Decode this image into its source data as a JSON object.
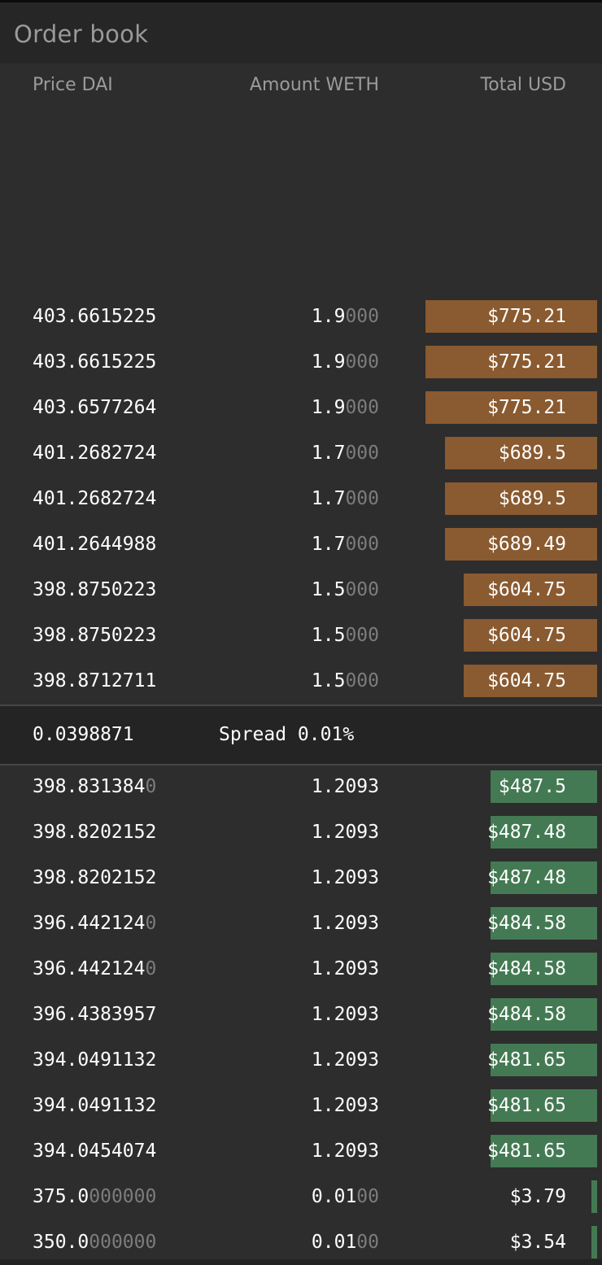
{
  "panel": {
    "title": "Order book"
  },
  "columns": {
    "price": "Price DAI",
    "amount": "Amount WETH",
    "total": "Total USD"
  },
  "colors": {
    "ask_bar": "#8a5a30",
    "bid_bar": "#447a53",
    "background": "#2d2d2d"
  },
  "asks": [
    {
      "price": "403.6615225",
      "price_dim": "",
      "amount": "1.9",
      "amount_dim": "000",
      "total": "$775.21",
      "depth": 0.287
    },
    {
      "price": "403.6615225",
      "price_dim": "",
      "amount": "1.9",
      "amount_dim": "000",
      "total": "$775.21",
      "depth": 0.287
    },
    {
      "price": "403.6577264",
      "price_dim": "",
      "amount": "1.9",
      "amount_dim": "000",
      "total": "$775.21",
      "depth": 0.287
    },
    {
      "price": "401.2682724",
      "price_dim": "",
      "amount": "1.7",
      "amount_dim": "000",
      "total": "$689.5",
      "depth": 0.255
    },
    {
      "price": "401.2682724",
      "price_dim": "",
      "amount": "1.7",
      "amount_dim": "000",
      "total": "$689.5",
      "depth": 0.255
    },
    {
      "price": "401.2644988",
      "price_dim": "",
      "amount": "1.7",
      "amount_dim": "000",
      "total": "$689.49",
      "depth": 0.255
    },
    {
      "price": "398.8750223",
      "price_dim": "",
      "amount": "1.5",
      "amount_dim": "000",
      "total": "$604.75",
      "depth": 0.224
    },
    {
      "price": "398.8750223",
      "price_dim": "",
      "amount": "1.5",
      "amount_dim": "000",
      "total": "$604.75",
      "depth": 0.224
    },
    {
      "price": "398.8712711",
      "price_dim": "",
      "amount": "1.5",
      "amount_dim": "000",
      "total": "$604.75",
      "depth": 0.224
    }
  ],
  "spread": {
    "value": "0.0398871",
    "label": "Spread 0.01%"
  },
  "bids": [
    {
      "price": "398.831384",
      "price_dim": "0",
      "amount": "1.2093",
      "amount_dim": "",
      "total": "$487.5",
      "depth": 0.178
    },
    {
      "price": "398.8202152",
      "price_dim": "",
      "amount": "1.2093",
      "amount_dim": "",
      "total": "$487.48",
      "depth": 0.178
    },
    {
      "price": "398.8202152",
      "price_dim": "",
      "amount": "1.2093",
      "amount_dim": "",
      "total": "$487.48",
      "depth": 0.178
    },
    {
      "price": "396.442124",
      "price_dim": "0",
      "amount": "1.2093",
      "amount_dim": "",
      "total": "$484.58",
      "depth": 0.178
    },
    {
      "price": "396.442124",
      "price_dim": "0",
      "amount": "1.2093",
      "amount_dim": "",
      "total": "$484.58",
      "depth": 0.178
    },
    {
      "price": "396.4383957",
      "price_dim": "",
      "amount": "1.2093",
      "amount_dim": "",
      "total": "$484.58",
      "depth": 0.178
    },
    {
      "price": "394.0491132",
      "price_dim": "",
      "amount": "1.2093",
      "amount_dim": "",
      "total": "$481.65",
      "depth": 0.178
    },
    {
      "price": "394.0491132",
      "price_dim": "",
      "amount": "1.2093",
      "amount_dim": "",
      "total": "$481.65",
      "depth": 0.178
    },
    {
      "price": "394.0454074",
      "price_dim": "",
      "amount": "1.2093",
      "amount_dim": "",
      "total": "$481.65",
      "depth": 0.178
    },
    {
      "price": "375.0",
      "price_dim": "000000",
      "amount": "0.01",
      "amount_dim": "00",
      "total": "$3.79",
      "depth": 0.01
    },
    {
      "price": "350.0",
      "price_dim": "000000",
      "amount": "0.01",
      "amount_dim": "00",
      "total": "$3.54",
      "depth": 0.01
    }
  ]
}
